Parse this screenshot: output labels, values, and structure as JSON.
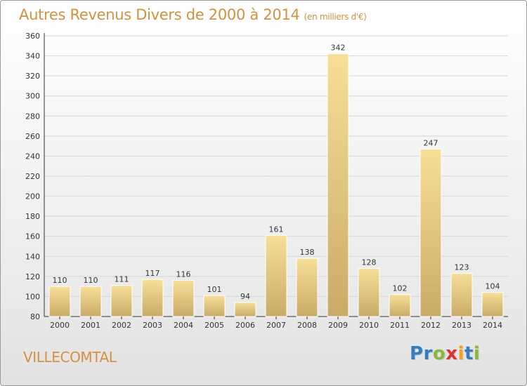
{
  "title": "Autres Revenus Divers de 2000 à 2014",
  "subtitle": "(en milliers d'€)",
  "place": "VILLECOMTAL",
  "logo": {
    "letters": [
      "P",
      "r",
      "o",
      "x",
      "i",
      "t",
      "i"
    ],
    "colors": [
      "#2f7fc1",
      "#2f7fc1",
      "#8cb83a",
      "#e2302f",
      "#f2a21c",
      "#2f7fc1",
      "#8cb83a"
    ]
  },
  "colors": {
    "title": "#d2923e",
    "bar_light": "#f7df98",
    "bar_dark": "#c9ab68",
    "grid": "#d6d6d6",
    "axis": "#333333"
  },
  "chart_data": {
    "type": "bar",
    "categories": [
      "2000",
      "2001",
      "2002",
      "2003",
      "2004",
      "2005",
      "2006",
      "2007",
      "2008",
      "2009",
      "2010",
      "2011",
      "2012",
      "2013",
      "2014"
    ],
    "values": [
      110,
      110,
      111,
      117,
      116,
      101,
      94,
      161,
      138,
      342,
      128,
      102,
      247,
      123,
      104
    ],
    "ylim": [
      80,
      360
    ],
    "yticks": [
      80,
      100,
      120,
      140,
      160,
      180,
      200,
      220,
      240,
      260,
      280,
      300,
      320,
      340,
      360
    ],
    "title": "Autres Revenus Divers de 2000 à 2014",
    "xlabel": "",
    "ylabel": "",
    "grid": true
  }
}
